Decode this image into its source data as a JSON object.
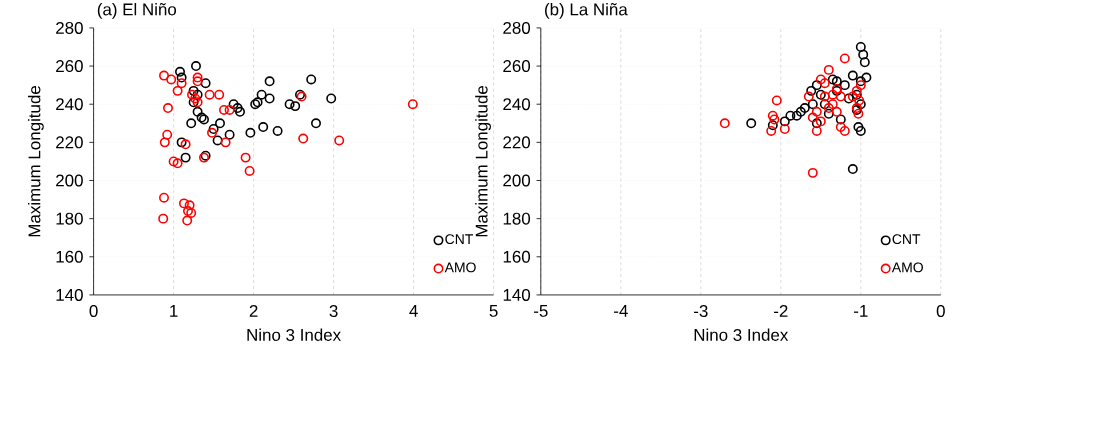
{
  "chart_data": [
    {
      "type": "scatter",
      "title": "(a) El Niño",
      "xlabel": "Nino 3 Index",
      "ylabel": "Maximum Longitude",
      "xlim": [
        0,
        5
      ],
      "ylim": [
        140,
        280
      ],
      "xticks": [
        0,
        1,
        2,
        3,
        4,
        5
      ],
      "yticks": [
        140,
        160,
        180,
        200,
        220,
        240,
        260,
        280
      ],
      "grid": true,
      "legend": "bottom right",
      "marker": "circle",
      "series": [
        {
          "name": "CNT",
          "color": "#000000",
          "x": [
            1.08,
            1.1,
            1.28,
            1.25,
            1.4,
            1.3,
            1.25,
            1.3,
            1.35,
            1.38,
            1.22,
            1.1,
            1.15,
            1.4,
            1.5,
            1.55,
            1.7,
            1.8,
            1.83,
            1.96,
            2.05,
            2.1,
            2.2,
            2.2,
            2.12,
            2.3,
            2.45,
            2.52,
            2.58,
            2.72,
            2.78,
            2.97,
            1.58,
            1.75,
            2.02
          ],
          "values": [
            257,
            254,
            260,
            247,
            251,
            245,
            241,
            236,
            233,
            232,
            230,
            220,
            212,
            213,
            227,
            221,
            224,
            238,
            236,
            225,
            241,
            245,
            243,
            252,
            228,
            226,
            240,
            239,
            245,
            253,
            230,
            243,
            230,
            240,
            240
          ]
        },
        {
          "name": "AMO",
          "color": "#ff0000",
          "x": [
            0.88,
            0.97,
            1.05,
            1.1,
            1.3,
            1.3,
            0.93,
            0.92,
            0.89,
            1.05,
            1.0,
            1.15,
            1.23,
            1.27,
            1.3,
            1.45,
            1.57,
            1.48,
            1.38,
            1.63,
            1.7,
            1.65,
            1.9,
            1.95,
            2.6,
            2.62,
            3.07,
            3.99,
            0.88,
            0.87,
            1.13,
            1.2,
            1.18,
            1.17,
            1.22
          ],
          "values": [
            255,
            253,
            247,
            251,
            254,
            252,
            238,
            224,
            220,
            209,
            210,
            219,
            245,
            243,
            241,
            245,
            245,
            225,
            212,
            237,
            237,
            220,
            212,
            205,
            244,
            222,
            221,
            240,
            191,
            180,
            188,
            187,
            184,
            179,
            183
          ]
        }
      ]
    },
    {
      "type": "scatter",
      "title": "(b) La Niña",
      "xlabel": "Nino 3 Index",
      "ylabel": "Maximum Longitude",
      "xlim": [
        -5,
        0
      ],
      "ylim": [
        140,
        280
      ],
      "xticks": [
        -5,
        -4,
        -3,
        -2,
        -1,
        0
      ],
      "yticks": [
        140,
        160,
        180,
        200,
        220,
        240,
        260,
        280
      ],
      "grid": true,
      "legend": "bottom right",
      "marker": "circle",
      "series": [
        {
          "name": "CNT",
          "color": "#000000",
          "x": [
            -2.37,
            -2.1,
            -1.95,
            -1.88,
            -1.75,
            -1.7,
            -1.6,
            -1.5,
            -1.35,
            -1.1,
            -1.0,
            -0.97,
            -0.95,
            -0.93,
            -1.0,
            -1.05,
            -1.0,
            -1.05,
            -1.03,
            -1.0,
            -1.2,
            -1.3,
            -1.45,
            -1.55,
            -1.62,
            -1.4,
            -1.25,
            -1.15,
            -1.1,
            -1.55,
            -1.3,
            -1.8
          ],
          "values": [
            230,
            229,
            231,
            234,
            236,
            238,
            240,
            245,
            253,
            206,
            270,
            266,
            262,
            254,
            252,
            245,
            240,
            237,
            228,
            226,
            250,
            247,
            240,
            230,
            247,
            235,
            232,
            243,
            255,
            250,
            252,
            234
          ]
        },
        {
          "name": "AMO",
          "color": "#ff0000",
          "x": [
            -2.7,
            -2.05,
            -2.1,
            -2.08,
            -2.12,
            -1.95,
            -1.6,
            -1.65,
            -1.55,
            -1.45,
            -1.4,
            -1.2,
            -1.3,
            -1.25,
            -1.35,
            -1.4,
            -1.5,
            -1.55,
            -1.2,
            -1.3,
            -1.05,
            -1.0,
            -1.02,
            -1.05,
            -1.03,
            -1.1,
            -1.5,
            -1.35,
            -1.45,
            -1.25,
            -1.6
          ],
          "values": [
            230,
            242,
            234,
            232,
            226,
            227,
            204,
            244,
            236,
            251,
            258,
            264,
            248,
            244,
            240,
            238,
            231,
            226,
            226,
            236,
            247,
            250,
            242,
            238,
            235,
            244,
            253,
            245,
            244,
            228,
            233
          ]
        }
      ]
    }
  ]
}
